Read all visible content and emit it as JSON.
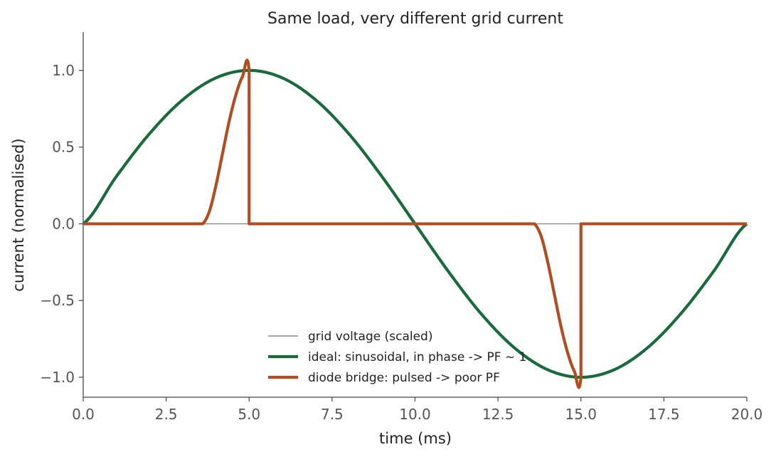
{
  "chart_data": {
    "type": "line",
    "title": "Same load, very different grid current",
    "xlabel": "time  (ms)",
    "ylabel": "current  (normalised)",
    "xlim": [
      0,
      20
    ],
    "ylim": [
      -1.13,
      1.25
    ],
    "xticks": [
      0,
      2.5,
      5,
      7.5,
      10,
      12.5,
      15,
      17.5,
      20
    ],
    "xtick_labels": [
      "0.0",
      "2.5",
      "5.0",
      "7.5",
      "10.0",
      "12.5",
      "15.0",
      "17.5",
      "20.0"
    ],
    "yticks": [
      1,
      0.5,
      0,
      -0.5,
      -1
    ],
    "ytick_labels": [
      "1.0",
      "0.5",
      "0.0",
      "−0.5",
      "−1.0"
    ],
    "grid": false,
    "legend_position": "lower-center",
    "series": [
      {
        "name": "grid voltage (scaled)",
        "color": "#888888",
        "x": [
          0,
          20
        ],
        "y": [
          0,
          0
        ]
      },
      {
        "name": "ideal: sinusoidal, in phase -> PF ~ 1",
        "color": "#1a6b3c",
        "x": [
          0,
          1,
          2,
          3,
          4,
          5,
          6,
          7,
          8,
          9,
          10,
          11,
          12,
          13,
          14,
          15,
          16,
          17,
          18,
          19,
          20
        ],
        "y": [
          0,
          0.309,
          0.588,
          0.809,
          0.951,
          1.0,
          0.951,
          0.809,
          0.588,
          0.309,
          0,
          -0.309,
          -0.588,
          -0.809,
          -0.951,
          -1.0,
          -0.951,
          -0.809,
          -0.588,
          -0.309,
          0
        ]
      },
      {
        "name": "diode bridge: pulsed -> poor PF",
        "color": "#b04e22",
        "x": [
          0,
          3.6,
          3.8,
          4.0,
          4.2,
          4.4,
          4.6,
          4.8,
          5.0,
          5.0,
          13.6,
          13.8,
          14.0,
          14.2,
          14.4,
          14.6,
          14.8,
          15.0,
          15.0,
          20
        ],
        "y": [
          0,
          0,
          0.08,
          0.25,
          0.46,
          0.67,
          0.84,
          0.96,
          1.0,
          0,
          0,
          -0.08,
          -0.25,
          -0.46,
          -0.67,
          -0.84,
          -0.96,
          -1.0,
          0,
          0
        ]
      }
    ]
  }
}
